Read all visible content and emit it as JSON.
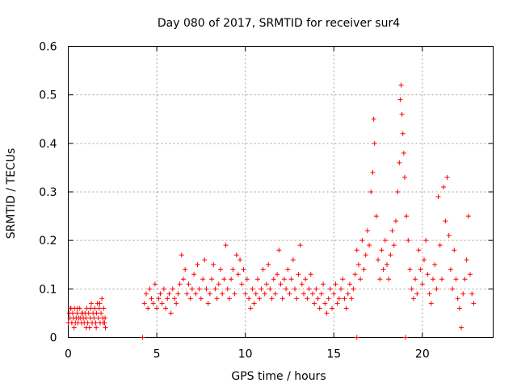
{
  "chart_data": {
    "type": "scatter",
    "title": "Day 080 of 2017, SRMTID for receiver sur4",
    "xlabel": "GPS time / hours",
    "ylabel": "SRMTID / TECUs",
    "xlim": [
      0,
      24
    ],
    "ylim": [
      0,
      0.6
    ],
    "grid": true,
    "marker": "+",
    "color": "#ff0000",
    "xticks": [
      0,
      5,
      10,
      15,
      20
    ],
    "xtick_labels": [
      "0",
      "5",
      "10",
      "15",
      "20"
    ],
    "yticks": [
      0,
      0.1,
      0.2,
      0.3,
      0.4,
      0.5,
      0.6
    ],
    "ytick_labels": [
      "0",
      "0.1",
      "0.2",
      "0.3",
      "0.4",
      "0.5",
      "0.6"
    ],
    "series": [
      {
        "name": "sur4",
        "points": [
          [
            0.0,
            0.03
          ],
          [
            0.05,
            0.05
          ],
          [
            0.1,
            0.04
          ],
          [
            0.15,
            0.06
          ],
          [
            0.2,
            0.03
          ],
          [
            0.25,
            0.05
          ],
          [
            0.3,
            0.04
          ],
          [
            0.35,
            0.06
          ],
          [
            0.4,
            0.03
          ],
          [
            0.45,
            0.04
          ],
          [
            0.5,
            0.05
          ],
          [
            0.55,
            0.03
          ],
          [
            0.6,
            0.04
          ],
          [
            0.65,
            0.06
          ],
          [
            0.7,
            0.04
          ],
          [
            0.75,
            0.03
          ],
          [
            0.8,
            0.05
          ],
          [
            0.85,
            0.04
          ],
          [
            0.9,
            0.03
          ],
          [
            0.95,
            0.05
          ],
          [
            1.0,
            0.04
          ],
          [
            1.05,
            0.06
          ],
          [
            1.1,
            0.03
          ],
          [
            1.15,
            0.05
          ],
          [
            1.2,
            0.02
          ],
          [
            1.25,
            0.04
          ],
          [
            1.3,
            0.07
          ],
          [
            1.35,
            0.03
          ],
          [
            1.4,
            0.05
          ],
          [
            1.45,
            0.04
          ],
          [
            1.5,
            0.06
          ],
          [
            1.55,
            0.03
          ],
          [
            1.6,
            0.05
          ],
          [
            1.65,
            0.07
          ],
          [
            1.7,
            0.04
          ],
          [
            1.75,
            0.06
          ],
          [
            1.8,
            0.03
          ],
          [
            1.85,
            0.05
          ],
          [
            1.9,
            0.08
          ],
          [
            1.95,
            0.04
          ],
          [
            2.0,
            0.06
          ],
          [
            2.05,
            0.03
          ],
          [
            2.1,
            0.02
          ],
          [
            0.12,
            0.06
          ],
          [
            0.33,
            0.02
          ],
          [
            0.52,
            0.06
          ],
          [
            0.78,
            0.05
          ],
          [
            1.02,
            0.02
          ],
          [
            1.28,
            0.06
          ],
          [
            1.58,
            0.02
          ],
          [
            1.78,
            0.07
          ],
          [
            1.98,
            0.03
          ],
          [
            2.08,
            0.04
          ],
          [
            4.2,
            0.0
          ],
          [
            4.3,
            0.07
          ],
          [
            4.4,
            0.09
          ],
          [
            4.5,
            0.06
          ],
          [
            4.6,
            0.1
          ],
          [
            4.7,
            0.08
          ],
          [
            4.8,
            0.07
          ],
          [
            4.9,
            0.11
          ],
          [
            5.0,
            0.06
          ],
          [
            5.1,
            0.08
          ],
          [
            5.2,
            0.09
          ],
          [
            5.3,
            0.07
          ],
          [
            5.4,
            0.1
          ],
          [
            5.5,
            0.06
          ],
          [
            5.6,
            0.08
          ],
          [
            5.7,
            0.09
          ],
          [
            5.8,
            0.05
          ],
          [
            5.9,
            0.1
          ],
          [
            6.0,
            0.08
          ],
          [
            6.1,
            0.07
          ],
          [
            6.2,
            0.09
          ],
          [
            6.3,
            0.11
          ],
          [
            6.4,
            0.17
          ],
          [
            6.5,
            0.12
          ],
          [
            6.6,
            0.14
          ],
          [
            6.7,
            0.09
          ],
          [
            6.8,
            0.11
          ],
          [
            6.9,
            0.08
          ],
          [
            7.0,
            0.1
          ],
          [
            7.1,
            0.13
          ],
          [
            7.2,
            0.09
          ],
          [
            7.3,
            0.15
          ],
          [
            7.4,
            0.1
          ],
          [
            7.5,
            0.08
          ],
          [
            7.6,
            0.12
          ],
          [
            7.7,
            0.16
          ],
          [
            7.8,
            0.1
          ],
          [
            7.9,
            0.07
          ],
          [
            8.0,
            0.09
          ],
          [
            8.1,
            0.12
          ],
          [
            8.2,
            0.15
          ],
          [
            8.3,
            0.1
          ],
          [
            8.4,
            0.08
          ],
          [
            8.5,
            0.11
          ],
          [
            8.6,
            0.14
          ],
          [
            8.7,
            0.09
          ],
          [
            8.8,
            0.12
          ],
          [
            8.9,
            0.19
          ],
          [
            9.0,
            0.1
          ],
          [
            9.1,
            0.08
          ],
          [
            9.2,
            0.12
          ],
          [
            9.3,
            0.14
          ],
          [
            9.4,
            0.09
          ],
          [
            9.5,
            0.17
          ],
          [
            9.6,
            0.13
          ],
          [
            9.7,
            0.16
          ],
          [
            9.8,
            0.11
          ],
          [
            9.9,
            0.14
          ],
          [
            10.0,
            0.09
          ],
          [
            10.1,
            0.12
          ],
          [
            10.2,
            0.08
          ],
          [
            10.3,
            0.06
          ],
          [
            10.4,
            0.1
          ],
          [
            10.5,
            0.07
          ],
          [
            10.6,
            0.09
          ],
          [
            10.7,
            0.12
          ],
          [
            10.8,
            0.08
          ],
          [
            10.9,
            0.1
          ],
          [
            11.0,
            0.14
          ],
          [
            11.1,
            0.09
          ],
          [
            11.2,
            0.11
          ],
          [
            11.3,
            0.15
          ],
          [
            11.4,
            0.1
          ],
          [
            11.5,
            0.08
          ],
          [
            11.6,
            0.12
          ],
          [
            11.7,
            0.09
          ],
          [
            11.8,
            0.13
          ],
          [
            11.9,
            0.18
          ],
          [
            12.0,
            0.11
          ],
          [
            12.1,
            0.08
          ],
          [
            12.2,
            0.12
          ],
          [
            12.3,
            0.1
          ],
          [
            12.4,
            0.14
          ],
          [
            12.5,
            0.09
          ],
          [
            12.6,
            0.12
          ],
          [
            12.7,
            0.16
          ],
          [
            12.8,
            0.1
          ],
          [
            12.9,
            0.08
          ],
          [
            13.0,
            0.13
          ],
          [
            13.1,
            0.19
          ],
          [
            13.2,
            0.11
          ],
          [
            13.3,
            0.09
          ],
          [
            13.4,
            0.12
          ],
          [
            13.5,
            0.08
          ],
          [
            13.6,
            0.1
          ],
          [
            13.7,
            0.13
          ],
          [
            13.8,
            0.09
          ],
          [
            13.9,
            0.07
          ],
          [
            14.0,
            0.1
          ],
          [
            14.1,
            0.08
          ],
          [
            14.2,
            0.06
          ],
          [
            14.3,
            0.09
          ],
          [
            14.4,
            0.11
          ],
          [
            14.5,
            0.07
          ],
          [
            14.6,
            0.05
          ],
          [
            14.7,
            0.08
          ],
          [
            14.8,
            0.1
          ],
          [
            14.9,
            0.06
          ],
          [
            15.0,
            0.09
          ],
          [
            15.1,
            0.11
          ],
          [
            15.2,
            0.07
          ],
          [
            15.3,
            0.08
          ],
          [
            15.4,
            0.1
          ],
          [
            15.5,
            0.12
          ],
          [
            15.6,
            0.08
          ],
          [
            15.7,
            0.06
          ],
          [
            15.8,
            0.09
          ],
          [
            15.9,
            0.11
          ],
          [
            16.0,
            0.08
          ],
          [
            16.1,
            0.1
          ],
          [
            16.2,
            0.13
          ],
          [
            16.3,
            0.18
          ],
          [
            16.4,
            0.15
          ],
          [
            16.5,
            0.12
          ],
          [
            16.6,
            0.2
          ],
          [
            16.7,
            0.14
          ],
          [
            16.8,
            0.17
          ],
          [
            16.9,
            0.22
          ],
          [
            17.0,
            0.19
          ],
          [
            17.1,
            0.3
          ],
          [
            17.2,
            0.34
          ],
          [
            17.25,
            0.45
          ],
          [
            17.3,
            0.4
          ],
          [
            17.4,
            0.25
          ],
          [
            17.5,
            0.16
          ],
          [
            17.6,
            0.12
          ],
          [
            17.7,
            0.18
          ],
          [
            17.8,
            0.14
          ],
          [
            17.9,
            0.2
          ],
          [
            18.0,
            0.15
          ],
          [
            18.1,
            0.12
          ],
          [
            18.2,
            0.17
          ],
          [
            18.3,
            0.22
          ],
          [
            18.4,
            0.19
          ],
          [
            18.5,
            0.24
          ],
          [
            18.6,
            0.3
          ],
          [
            18.7,
            0.36
          ],
          [
            18.75,
            0.49
          ],
          [
            18.8,
            0.52
          ],
          [
            18.85,
            0.46
          ],
          [
            18.9,
            0.42
          ],
          [
            18.95,
            0.38
          ],
          [
            19.0,
            0.33
          ],
          [
            19.1,
            0.25
          ],
          [
            19.2,
            0.2
          ],
          [
            19.3,
            0.14
          ],
          [
            19.4,
            0.1
          ],
          [
            19.5,
            0.08
          ],
          [
            19.6,
            0.12
          ],
          [
            19.7,
            0.09
          ],
          [
            19.8,
            0.18
          ],
          [
            19.9,
            0.14
          ],
          [
            20.0,
            0.11
          ],
          [
            20.1,
            0.16
          ],
          [
            20.2,
            0.2
          ],
          [
            20.3,
            0.13
          ],
          [
            20.4,
            0.09
          ],
          [
            20.5,
            0.07
          ],
          [
            20.6,
            0.12
          ],
          [
            20.7,
            0.15
          ],
          [
            20.8,
            0.1
          ],
          [
            20.9,
            0.29
          ],
          [
            21.0,
            0.19
          ],
          [
            21.1,
            0.12
          ],
          [
            21.2,
            0.31
          ],
          [
            21.3,
            0.24
          ],
          [
            21.4,
            0.33
          ],
          [
            21.5,
            0.21
          ],
          [
            21.6,
            0.14
          ],
          [
            21.7,
            0.1
          ],
          [
            21.8,
            0.18
          ],
          [
            21.9,
            0.12
          ],
          [
            22.0,
            0.08
          ],
          [
            22.1,
            0.06
          ],
          [
            22.2,
            0.02
          ],
          [
            22.3,
            0.09
          ],
          [
            22.4,
            0.12
          ],
          [
            22.5,
            0.16
          ],
          [
            22.6,
            0.25
          ],
          [
            22.7,
            0.13
          ],
          [
            22.8,
            0.09
          ],
          [
            22.9,
            0.07
          ],
          [
            16.3,
            0.0
          ],
          [
            19.05,
            0.0
          ]
        ]
      }
    ]
  }
}
